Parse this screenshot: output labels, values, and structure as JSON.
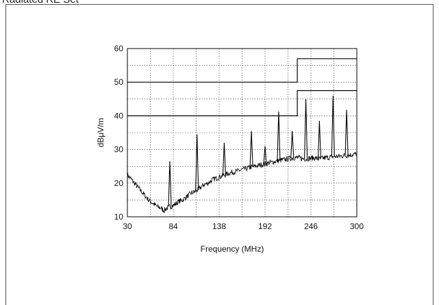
{
  "page": {
    "title_fragment": "Radiated RE Set"
  },
  "chart_data": {
    "type": "line",
    "title": "",
    "xlabel": "Frequency (MHz)",
    "ylabel": "dBμV/m",
    "xlim": [
      30,
      300
    ],
    "ylim": [
      10,
      60
    ],
    "x_ticks": [
      30,
      84,
      138,
      192,
      246,
      300
    ],
    "y_ticks": [
      10,
      20,
      30,
      40,
      50,
      60
    ],
    "grid": true,
    "limit_lines": [
      {
        "points": [
          [
            30,
            50
          ],
          [
            230,
            50
          ],
          [
            230,
            57
          ],
          [
            300,
            57
          ]
        ]
      },
      {
        "points": [
          [
            30,
            40
          ],
          [
            230,
            40
          ],
          [
            230,
            47.5
          ],
          [
            300,
            47.5
          ]
        ]
      }
    ],
    "series": [
      {
        "points": [
          [
            30,
            22.5
          ],
          [
            35,
            21
          ],
          [
            40,
            19.5
          ],
          [
            45,
            18
          ],
          [
            50,
            16.5
          ],
          [
            55,
            15
          ],
          [
            60,
            14
          ],
          [
            65,
            13
          ],
          [
            70,
            12.5
          ],
          [
            73,
            11.8
          ],
          [
            76,
            12.5
          ],
          [
            80,
            13
          ],
          [
            85,
            13.5
          ],
          [
            90,
            14.5
          ],
          [
            95,
            15
          ],
          [
            100,
            16
          ],
          [
            105,
            17
          ],
          [
            110,
            17.5
          ],
          [
            115,
            18.5
          ],
          [
            120,
            19.5
          ],
          [
            125,
            20
          ],
          [
            130,
            21
          ],
          [
            135,
            21.5
          ],
          [
            140,
            22
          ],
          [
            145,
            22.5
          ],
          [
            150,
            23
          ],
          [
            155,
            23.3
          ],
          [
            160,
            23.6
          ],
          [
            165,
            24
          ],
          [
            170,
            24.3
          ],
          [
            175,
            24.7
          ],
          [
            180,
            25
          ],
          [
            185,
            25.3
          ],
          [
            190,
            25.6
          ],
          [
            195,
            25.9
          ],
          [
            200,
            26.2
          ],
          [
            205,
            26.5
          ],
          [
            210,
            26.8
          ],
          [
            215,
            27
          ],
          [
            220,
            27.3
          ],
          [
            225,
            27.5
          ],
          [
            230,
            27.6
          ],
          [
            235,
            27.3
          ],
          [
            240,
            27.2
          ],
          [
            245,
            27.4
          ],
          [
            250,
            27.5
          ],
          [
            255,
            27.2
          ],
          [
            260,
            27.4
          ],
          [
            265,
            27.6
          ],
          [
            270,
            27.8
          ],
          [
            275,
            27.9
          ],
          [
            280,
            28
          ],
          [
            285,
            28.2
          ],
          [
            290,
            28.3
          ],
          [
            295,
            28.5
          ],
          [
            300,
            28.6
          ]
        ],
        "spikes": [
          [
            80,
            26.5
          ],
          [
            112,
            34.5
          ],
          [
            144,
            32
          ],
          [
            176,
            35.5
          ],
          [
            192,
            31
          ],
          [
            208,
            41.3
          ],
          [
            224,
            35.5
          ],
          [
            240,
            45
          ],
          [
            256,
            38.5
          ],
          [
            272,
            46
          ],
          [
            288,
            41.8
          ]
        ]
      }
    ]
  }
}
